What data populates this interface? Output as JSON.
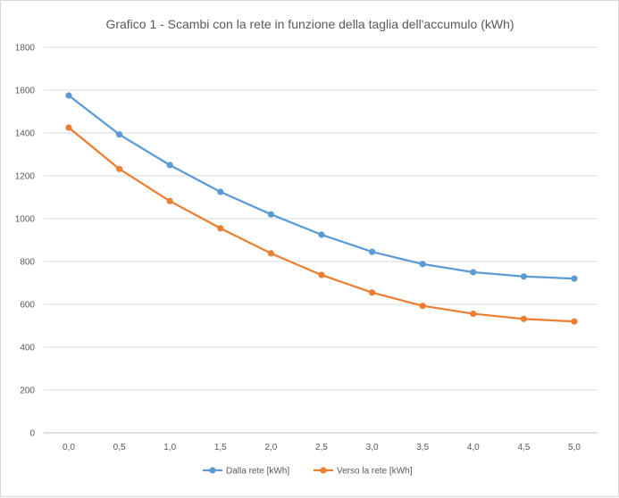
{
  "chart_data": {
    "type": "line",
    "title": "Grafico 1 - Scambi con la rete in funzione della taglia dell'accumulo (kWh)",
    "xlabel": "",
    "ylabel": "",
    "categories": [
      "0,0",
      "0,5",
      "1,0",
      "1,5",
      "2,0",
      "2,5",
      "3,0",
      "3,5",
      "4,0",
      "4,5",
      "5,0"
    ],
    "ylim": [
      0,
      1800
    ],
    "yticks": [
      0,
      200,
      400,
      600,
      800,
      1000,
      1200,
      1400,
      1600,
      1800
    ],
    "grid": true,
    "legend_position": "bottom",
    "series": [
      {
        "name": "Dalla rete [kWh]",
        "color": "#5b9bd5",
        "values": [
          1575,
          1393,
          1250,
          1125,
          1020,
          925,
          845,
          788,
          750,
          730,
          720
        ]
      },
      {
        "name": "Verso la rete [kWh]",
        "color": "#ed7d31",
        "values": [
          1425,
          1232,
          1082,
          955,
          838,
          737,
          655,
          593,
          556,
          532,
          520
        ]
      }
    ]
  }
}
